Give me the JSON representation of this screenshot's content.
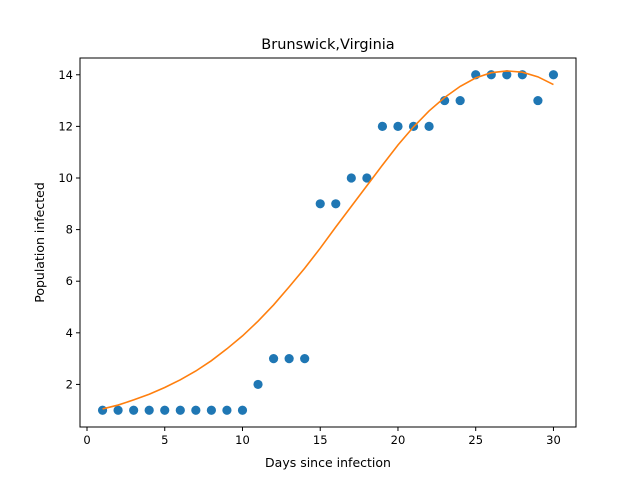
{
  "chart_data": {
    "type": "scatter",
    "title": "Brunswick,Virginia",
    "xlabel": "Days since infection",
    "ylabel": "Population infected",
    "xlim": [
      -0.45,
      31.45
    ],
    "ylim": [
      0.35,
      14.65
    ],
    "xticks": [
      0,
      5,
      10,
      15,
      20,
      25,
      30
    ],
    "yticks": [
      2,
      4,
      6,
      8,
      10,
      12,
      14
    ],
    "grid": false,
    "series": [
      {
        "kind": "points",
        "color": "#1f77b4",
        "x": [
          1,
          2,
          3,
          4,
          5,
          6,
          7,
          8,
          9,
          10,
          11,
          12,
          13,
          14,
          15,
          16,
          17,
          18,
          19,
          20,
          21,
          22,
          23,
          24,
          25,
          26,
          27,
          28,
          29,
          30
        ],
        "y": [
          1,
          1,
          1,
          1,
          1,
          1,
          1,
          1,
          1,
          1,
          2,
          3,
          3,
          3,
          9,
          9,
          10,
          10,
          12,
          12,
          12,
          12,
          13,
          13,
          14,
          14,
          14,
          14,
          13,
          14
        ]
      },
      {
        "kind": "fit-line",
        "color": "#ff7f0e",
        "x": [
          1,
          2,
          3,
          4,
          5,
          6,
          7,
          8,
          9,
          10,
          11,
          12,
          13,
          14,
          15,
          16,
          17,
          18,
          19,
          20,
          21,
          22,
          23,
          24,
          25,
          26,
          27,
          28,
          29,
          30
        ],
        "y": [
          1.05,
          1.2,
          1.4,
          1.62,
          1.88,
          2.18,
          2.52,
          2.92,
          3.38,
          3.88,
          4.45,
          5.08,
          5.78,
          6.5,
          7.28,
          8.1,
          8.9,
          9.7,
          10.5,
          11.28,
          11.98,
          12.6,
          13.12,
          13.55,
          13.88,
          14.08,
          14.15,
          14.1,
          13.92,
          13.62
        ]
      }
    ]
  }
}
